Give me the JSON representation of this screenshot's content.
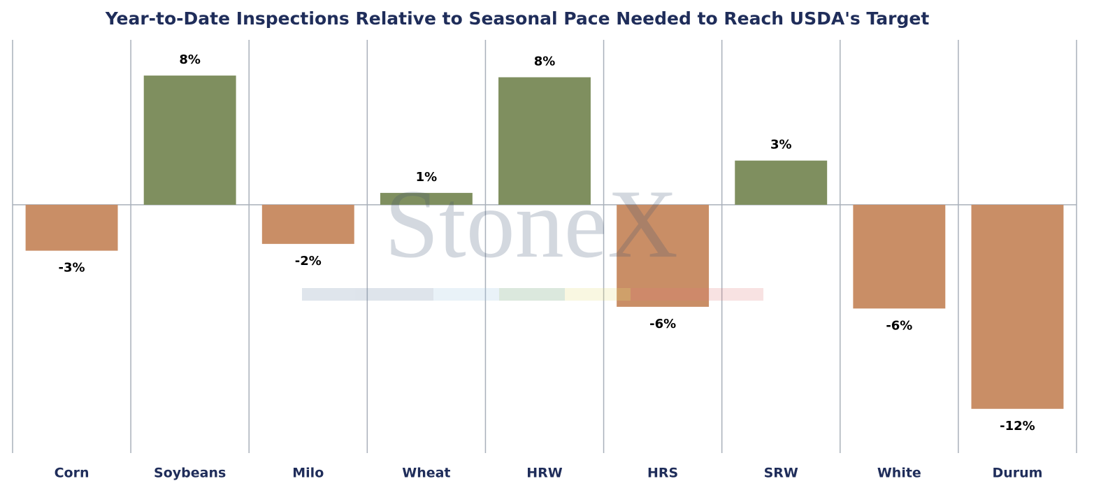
{
  "chart_data": {
    "type": "bar",
    "title": "Year-to-Date Inspections Relative to Seasonal Pace Needed to Reach USDA's Target",
    "watermark": "StoneX",
    "categories": [
      "Corn",
      "Soybeans",
      "Milo",
      "Wheat",
      "HRW",
      "HRS",
      "SRW",
      "White",
      "Durum"
    ],
    "values": [
      -2.7,
      7.6,
      -2.3,
      0.7,
      7.5,
      -6.0,
      2.6,
      -6.1,
      -12.0
    ],
    "value_labels": [
      "-3%",
      "8%",
      "-2%",
      "1%",
      "8%",
      "-6%",
      "3%",
      "-6%",
      "-12%"
    ],
    "positive_color": "#7f8f5f",
    "negative_color": "#c98e66",
    "ylim": [
      -14.6,
      9.7
    ]
  }
}
